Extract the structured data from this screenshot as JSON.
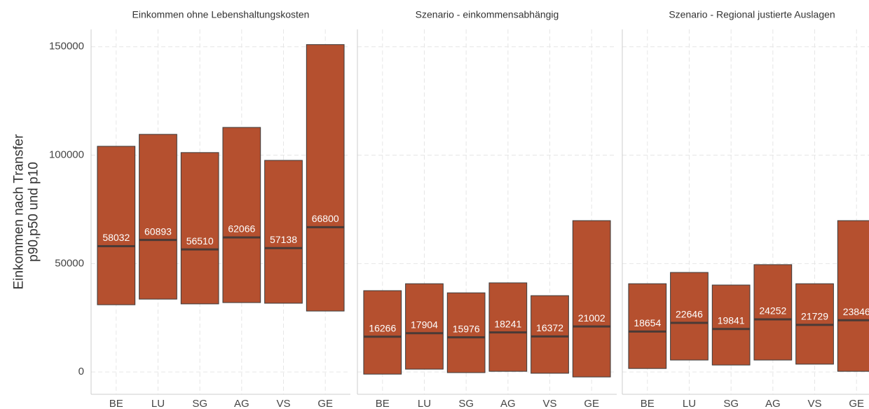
{
  "chart_data": [
    {
      "type": "floatingbar",
      "title": "Einkommen ohne Lebenshaltungskosten",
      "ylabel": "Einkommen nach Transfer\np90,p50 und p10",
      "categories": [
        "BE",
        "LU",
        "SG",
        "AG",
        "VS",
        "GE"
      ],
      "values": [
        58032,
        60893,
        56510,
        62066,
        57138,
        66800
      ],
      "lows": [
        31000,
        33600,
        31400,
        32000,
        31700,
        28100
      ],
      "highs": [
        104100,
        109600,
        101200,
        112800,
        97600,
        151000
      ],
      "color": "#b5502f",
      "ylim": [
        -10300,
        158000
      ],
      "yticks": [
        0,
        50000,
        100000,
        150000
      ],
      "grid": true
    },
    {
      "type": "floatingbar",
      "title": "Szenario - einkommensabhängig",
      "categories": [
        "BE",
        "LU",
        "SG",
        "AG",
        "VS",
        "GE"
      ],
      "values": [
        16266,
        17904,
        15976,
        18241,
        16372,
        21002
      ],
      "lows": [
        -1000,
        1300,
        -300,
        300,
        -600,
        -2300
      ],
      "highs": [
        37500,
        40700,
        36500,
        41100,
        35200,
        69800
      ],
      "color": "#b5502f",
      "ylim": [
        -10300,
        158000
      ],
      "yticks": [
        0,
        50000,
        100000,
        150000
      ],
      "grid": true
    },
    {
      "type": "floatingbar",
      "title": "Szenario - Regional justierte Auslagen",
      "categories": [
        "BE",
        "LU",
        "SG",
        "AG",
        "VS",
        "GE"
      ],
      "values": [
        18654,
        22646,
        19841,
        24252,
        21729,
        23846
      ],
      "lows": [
        1600,
        5500,
        3200,
        5500,
        3600,
        300
      ],
      "highs": [
        40700,
        45900,
        40100,
        49500,
        40700,
        69800
      ],
      "color": "#b5502f",
      "ylim": [
        -10300,
        158000
      ],
      "yticks": [
        0,
        50000,
        100000,
        150000
      ],
      "grid": true
    }
  ]
}
